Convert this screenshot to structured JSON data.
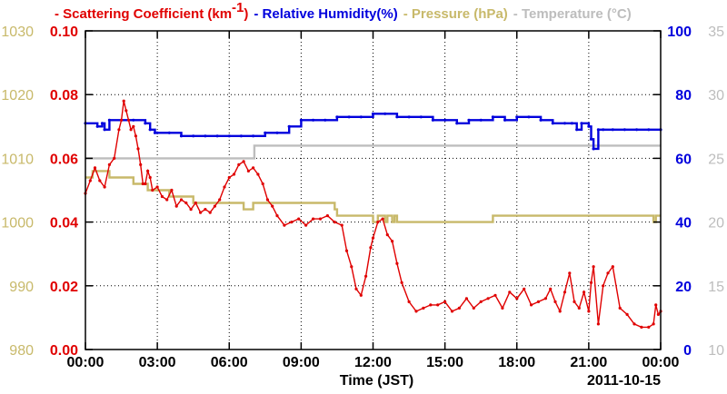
{
  "legend": [
    {
      "label": "- Scattering Coefficient (km",
      "sup": "-1",
      "tail": ")",
      "color": "#e00000"
    },
    {
      "label": "- Relative Humidity(%)",
      "color": "#0000dd"
    },
    {
      "label": "- Pressure (hPa)",
      "color": "#c8b96a"
    },
    {
      "label": "- Temperature (°C)",
      "color": "#bdbdbd"
    }
  ],
  "chart_data": {
    "type": "line",
    "xlabel": "Time (JST)",
    "date_label": "2011-10-15",
    "x_tick_labels": [
      "00:00",
      "03:00",
      "06:00",
      "09:00",
      "12:00",
      "15:00",
      "18:00",
      "21:00",
      "00:00"
    ],
    "xlim_hours": [
      0,
      24
    ],
    "axes": {
      "scattering": {
        "ylim": [
          0.0,
          0.1
        ],
        "ticks": [
          "0.00",
          "0.02",
          "0.04",
          "0.06",
          "0.08",
          "0.10"
        ],
        "side": "left-inner"
      },
      "pressure": {
        "ylim": [
          980,
          1030
        ],
        "ticks": [
          "980",
          "990",
          "1000",
          "1010",
          "1020",
          "1030"
        ],
        "side": "left-outer"
      },
      "humidity": {
        "ylim": [
          0,
          100
        ],
        "ticks": [
          "0",
          "20",
          "40",
          "60",
          "80",
          "100"
        ],
        "side": "right-inner"
      },
      "temperature": {
        "ylim": [
          10,
          35
        ],
        "ticks": [
          "10",
          "15",
          "20",
          "25",
          "30",
          "35"
        ],
        "side": "right-outer"
      }
    },
    "grid": true,
    "series": [
      {
        "name": "Scattering Coefficient (km-1)",
        "axis": "scattering",
        "color": "#e00000",
        "markers": true,
        "x": [
          0,
          0.2,
          0.4,
          0.6,
          0.8,
          1.0,
          1.2,
          1.4,
          1.5,
          1.6,
          1.7,
          1.8,
          1.9,
          2.0,
          2.1,
          2.2,
          2.3,
          2.4,
          2.5,
          2.6,
          2.7,
          2.8,
          3.0,
          3.2,
          3.4,
          3.6,
          3.8,
          4.0,
          4.2,
          4.4,
          4.6,
          4.8,
          5.0,
          5.2,
          5.4,
          5.6,
          5.8,
          6.0,
          6.2,
          6.4,
          6.6,
          6.8,
          7.0,
          7.2,
          7.4,
          7.6,
          7.8,
          8.0,
          8.3,
          8.6,
          8.9,
          9.2,
          9.5,
          9.8,
          10.1,
          10.4,
          10.7,
          10.9,
          11.1,
          11.3,
          11.5,
          11.7,
          11.9,
          12.0,
          12.2,
          12.4,
          12.6,
          12.8,
          13.0,
          13.2,
          13.5,
          13.8,
          14.1,
          14.4,
          14.7,
          15.0,
          15.3,
          15.6,
          15.9,
          16.2,
          16.5,
          16.8,
          17.1,
          17.4,
          17.7,
          18.0,
          18.3,
          18.6,
          18.9,
          19.2,
          19.4,
          19.6,
          19.8,
          20.0,
          20.2,
          20.4,
          20.6,
          20.8,
          21.0,
          21.1,
          21.2,
          21.4,
          21.6,
          21.8,
          22.0,
          22.3,
          22.6,
          22.9,
          23.2,
          23.5,
          23.7,
          23.8,
          23.9,
          24.0
        ],
        "y": [
          0.049,
          0.053,
          0.057,
          0.053,
          0.051,
          0.058,
          0.06,
          0.069,
          0.072,
          0.078,
          0.075,
          0.072,
          0.069,
          0.07,
          0.067,
          0.063,
          0.058,
          0.052,
          0.052,
          0.056,
          0.054,
          0.05,
          0.051,
          0.048,
          0.047,
          0.05,
          0.045,
          0.047,
          0.046,
          0.044,
          0.046,
          0.043,
          0.044,
          0.043,
          0.045,
          0.047,
          0.051,
          0.054,
          0.055,
          0.058,
          0.059,
          0.056,
          0.057,
          0.055,
          0.052,
          0.047,
          0.045,
          0.042,
          0.039,
          0.04,
          0.041,
          0.039,
          0.041,
          0.041,
          0.042,
          0.04,
          0.039,
          0.031,
          0.026,
          0.019,
          0.017,
          0.023,
          0.032,
          0.035,
          0.04,
          0.041,
          0.036,
          0.034,
          0.027,
          0.021,
          0.015,
          0.012,
          0.013,
          0.014,
          0.014,
          0.015,
          0.012,
          0.013,
          0.016,
          0.013,
          0.015,
          0.016,
          0.017,
          0.013,
          0.018,
          0.016,
          0.019,
          0.014,
          0.015,
          0.016,
          0.019,
          0.015,
          0.012,
          0.018,
          0.024,
          0.015,
          0.013,
          0.018,
          0.012,
          0.021,
          0.026,
          0.008,
          0.02,
          0.024,
          0.026,
          0.013,
          0.011,
          0.008,
          0.007,
          0.007,
          0.008,
          0.014,
          0.011,
          0.012
        ]
      },
      {
        "name": "Relative Humidity(%)",
        "axis": "humidity",
        "color": "#0000dd",
        "markers": true,
        "x": [
          0,
          0.5,
          0.7,
          0.8,
          1.0,
          1.5,
          2.0,
          2.5,
          2.7,
          2.9,
          3.0,
          3.5,
          4.0,
          4.5,
          5.0,
          5.5,
          6.0,
          6.5,
          7.0,
          7.5,
          8.0,
          8.5,
          9.0,
          9.5,
          10.0,
          10.5,
          11.0,
          11.5,
          12.0,
          12.5,
          13.0,
          13.5,
          14.0,
          14.5,
          15.0,
          15.5,
          16.0,
          16.5,
          17.0,
          17.5,
          18.0,
          18.5,
          19.0,
          19.5,
          20.0,
          20.3,
          20.5,
          20.7,
          21.0,
          21.1,
          21.2,
          21.4,
          21.6,
          22.0,
          22.5,
          23.0,
          23.5,
          24.0
        ],
        "y": [
          71,
          70,
          71,
          69,
          72,
          72,
          72,
          71,
          69,
          68,
          68,
          68,
          67,
          67,
          67,
          67,
          67,
          67,
          67,
          68,
          68,
          70,
          72,
          72,
          72,
          73,
          73,
          73,
          74,
          74,
          73,
          73,
          73,
          72,
          72,
          71,
          72,
          72,
          73,
          72,
          73,
          73,
          72,
          71,
          71,
          71,
          69,
          71,
          70,
          66,
          63,
          69,
          69,
          69,
          69,
          69,
          69,
          69
        ]
      },
      {
        "name": "Pressure (hPa)",
        "axis": "pressure",
        "color": "#c8b96a",
        "markers": false,
        "x": [
          0,
          0.3,
          0.6,
          1.0,
          1.5,
          2.0,
          2.3,
          2.6,
          3.0,
          3.5,
          4.0,
          4.5,
          5.0,
          5.5,
          6.0,
          6.3,
          6.6,
          7.0,
          7.5,
          8.0,
          8.5,
          9.0,
          9.5,
          10.0,
          10.4,
          10.5,
          11.0,
          11.5,
          11.8,
          12.0,
          12.2,
          12.5,
          12.6,
          12.8,
          12.9,
          13.0,
          13.5,
          14.0,
          15.0,
          16.0,
          17.0,
          18.0,
          19.0,
          20.0,
          21.0,
          22.0,
          23.0,
          23.6,
          23.7,
          23.8,
          24.0
        ],
        "y": [
          1007,
          1008,
          1008,
          1007,
          1007,
          1006,
          1006,
          1005,
          1005,
          1004,
          1004,
          1003,
          1003,
          1003,
          1003,
          1003,
          1002,
          1003,
          1003,
          1003,
          1003,
          1003,
          1003,
          1003,
          1002,
          1001,
          1001,
          1001,
          1001,
          1000,
          1001,
          1000,
          1001,
          1000,
          1001,
          1000,
          1000,
          1000,
          1000,
          1000,
          1001,
          1001,
          1001,
          1001,
          1001,
          1001,
          1001,
          1001,
          1000,
          1001,
          1001
        ]
      },
      {
        "name": "Temperature (°C)",
        "axis": "temperature",
        "color": "#bdbdbd",
        "markers": false,
        "x": [
          0,
          1,
          2,
          3,
          4,
          5,
          6,
          7.0,
          7.05,
          8,
          10,
          12,
          14,
          16,
          18,
          20,
          22,
          24
        ],
        "y": [
          25,
          25,
          25,
          25,
          25,
          25,
          25,
          25,
          26,
          26,
          26,
          26,
          26,
          26,
          26,
          26,
          26,
          26
        ]
      }
    ]
  }
}
